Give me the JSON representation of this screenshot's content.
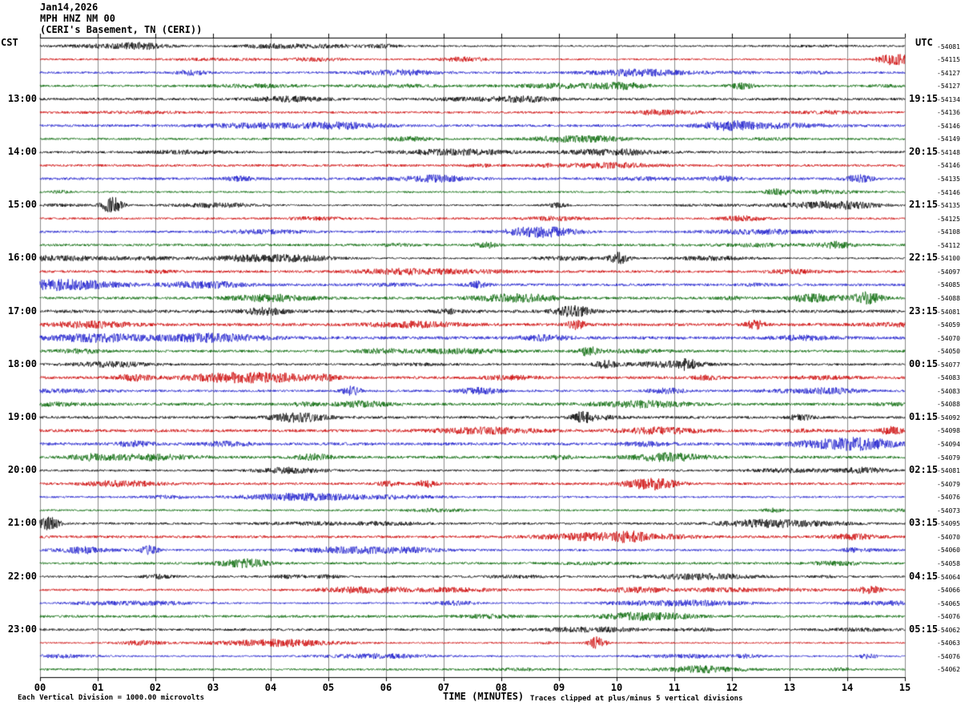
{
  "chart_data": {
    "type": "line",
    "variant": "helicorder-seismogram",
    "date": "Jan14,2026",
    "title": "MPH HNZ NM 00",
    "location": "(CERI&apos;s Basement, TN (CERI))",
    "xlabel": "TIME (MINUTES)",
    "x_ticks": [
      "00",
      "01",
      "02",
      "03",
      "04",
      "05",
      "06",
      "07",
      "08",
      "09",
      "10",
      "11",
      "12",
      "13",
      "14",
      "15"
    ],
    "x_range_minutes": [
      0,
      15
    ],
    "minutes_per_line": 15,
    "rows": 48,
    "grid": true,
    "trace_colors_cycle": [
      "#000000",
      "#cc0000",
      "#1a1acc",
      "#006400"
    ],
    "grid_color": "#8a8a8a",
    "left_axis": {
      "timezone": "CST",
      "labels": [
        {
          "row": 4,
          "text": "13:00"
        },
        {
          "row": 8,
          "text": "14:00"
        },
        {
          "row": 12,
          "text": "15:00"
        },
        {
          "row": 16,
          "text": "16:00"
        },
        {
          "row": 20,
          "text": "17:00"
        },
        {
          "row": 24,
          "text": "18:00"
        },
        {
          "row": 28,
          "text": "19:00"
        },
        {
          "row": 32,
          "text": "20:00"
        },
        {
          "row": 36,
          "text": "21:00"
        },
        {
          "row": 40,
          "text": "22:00"
        },
        {
          "row": 44,
          "text": "23:00"
        }
      ]
    },
    "right_axis": {
      "timezone": "UTC",
      "labels": [
        {
          "row": 4,
          "text": "19:15"
        },
        {
          "row": 8,
          "text": "20:15"
        },
        {
          "row": 12,
          "text": "21:15"
        },
        {
          "row": 16,
          "text": "22:15"
        },
        {
          "row": 20,
          "text": "23:15"
        },
        {
          "row": 24,
          "text": "00:15"
        },
        {
          "row": 28,
          "text": "01:15"
        },
        {
          "row": 32,
          "text": "02:15"
        },
        {
          "row": 36,
          "text": "03:15"
        },
        {
          "row": 40,
          "text": "04:15"
        },
        {
          "row": 44,
          "text": "05:15"
        }
      ]
    },
    "row_offset_labels": [
      "-54081",
      "-54115",
      "-54127",
      "-54127",
      "-54134",
      "-54136",
      "-54146",
      "-54149",
      "-54148",
      "-54146",
      "-54135",
      "-54146",
      "-54135",
      "-54125",
      "-54108",
      "-54112",
      "-54100",
      "-54097",
      "-54085",
      "-54088",
      "-54081",
      "-54059",
      "-54070",
      "-54050",
      "-54077",
      "-54083",
      "-54083",
      "-54088",
      "-54092",
      "-54098",
      "-54094",
      "-54079",
      "-54081",
      "-54079",
      "-54076",
      "-54073",
      "-54095",
      "-54070",
      "-54060",
      "-54058",
      "-54064",
      "-54066",
      "-54065",
      "-54076",
      "-54062",
      "-54063",
      "-54076",
      "-54062"
    ],
    "annotations": {
      "scale": "Each Vertical Division = 1000.00 microvolts",
      "clip": "Traces clipped at plus/minus 5 vertical divisions"
    },
    "events": [
      {
        "row": 1,
        "minute": 14.85,
        "amp": 7,
        "width": 16
      },
      {
        "row": 10,
        "minute": 14.2,
        "amp": 4,
        "width": 12
      },
      {
        "row": 12,
        "minute": 1.25,
        "amp": 10,
        "width": 9
      },
      {
        "row": 16,
        "minute": 10.05,
        "amp": 7,
        "width": 9
      },
      {
        "row": 19,
        "minute": 14.35,
        "amp": 6,
        "width": 11
      },
      {
        "row": 20,
        "minute": 9.3,
        "amp": 4,
        "width": 14
      },
      {
        "row": 21,
        "minute": 9.3,
        "amp": 5,
        "width": 8
      },
      {
        "row": 21,
        "minute": 12.4,
        "amp": 5,
        "width": 8
      },
      {
        "row": 23,
        "minute": 9.5,
        "amp": 5,
        "width": 8
      },
      {
        "row": 24,
        "minute": 9.8,
        "amp": 4,
        "width": 10
      },
      {
        "row": 24,
        "minute": 11.2,
        "amp": 4,
        "width": 10
      },
      {
        "row": 26,
        "minute": 5.4,
        "amp": 5,
        "width": 8
      },
      {
        "row": 28,
        "minute": 9.4,
        "amp": 6,
        "width": 8
      },
      {
        "row": 33,
        "minute": 6.7,
        "amp": 4,
        "width": 8
      },
      {
        "row": 36,
        "minute": 0.15,
        "amp": 8,
        "width": 9
      },
      {
        "row": 38,
        "minute": 1.9,
        "amp": 5,
        "width": 8
      },
      {
        "row": 41,
        "minute": 14.4,
        "amp": 5,
        "width": 10
      },
      {
        "row": 45,
        "minute": 9.65,
        "amp": 7,
        "width": 8
      }
    ]
  }
}
